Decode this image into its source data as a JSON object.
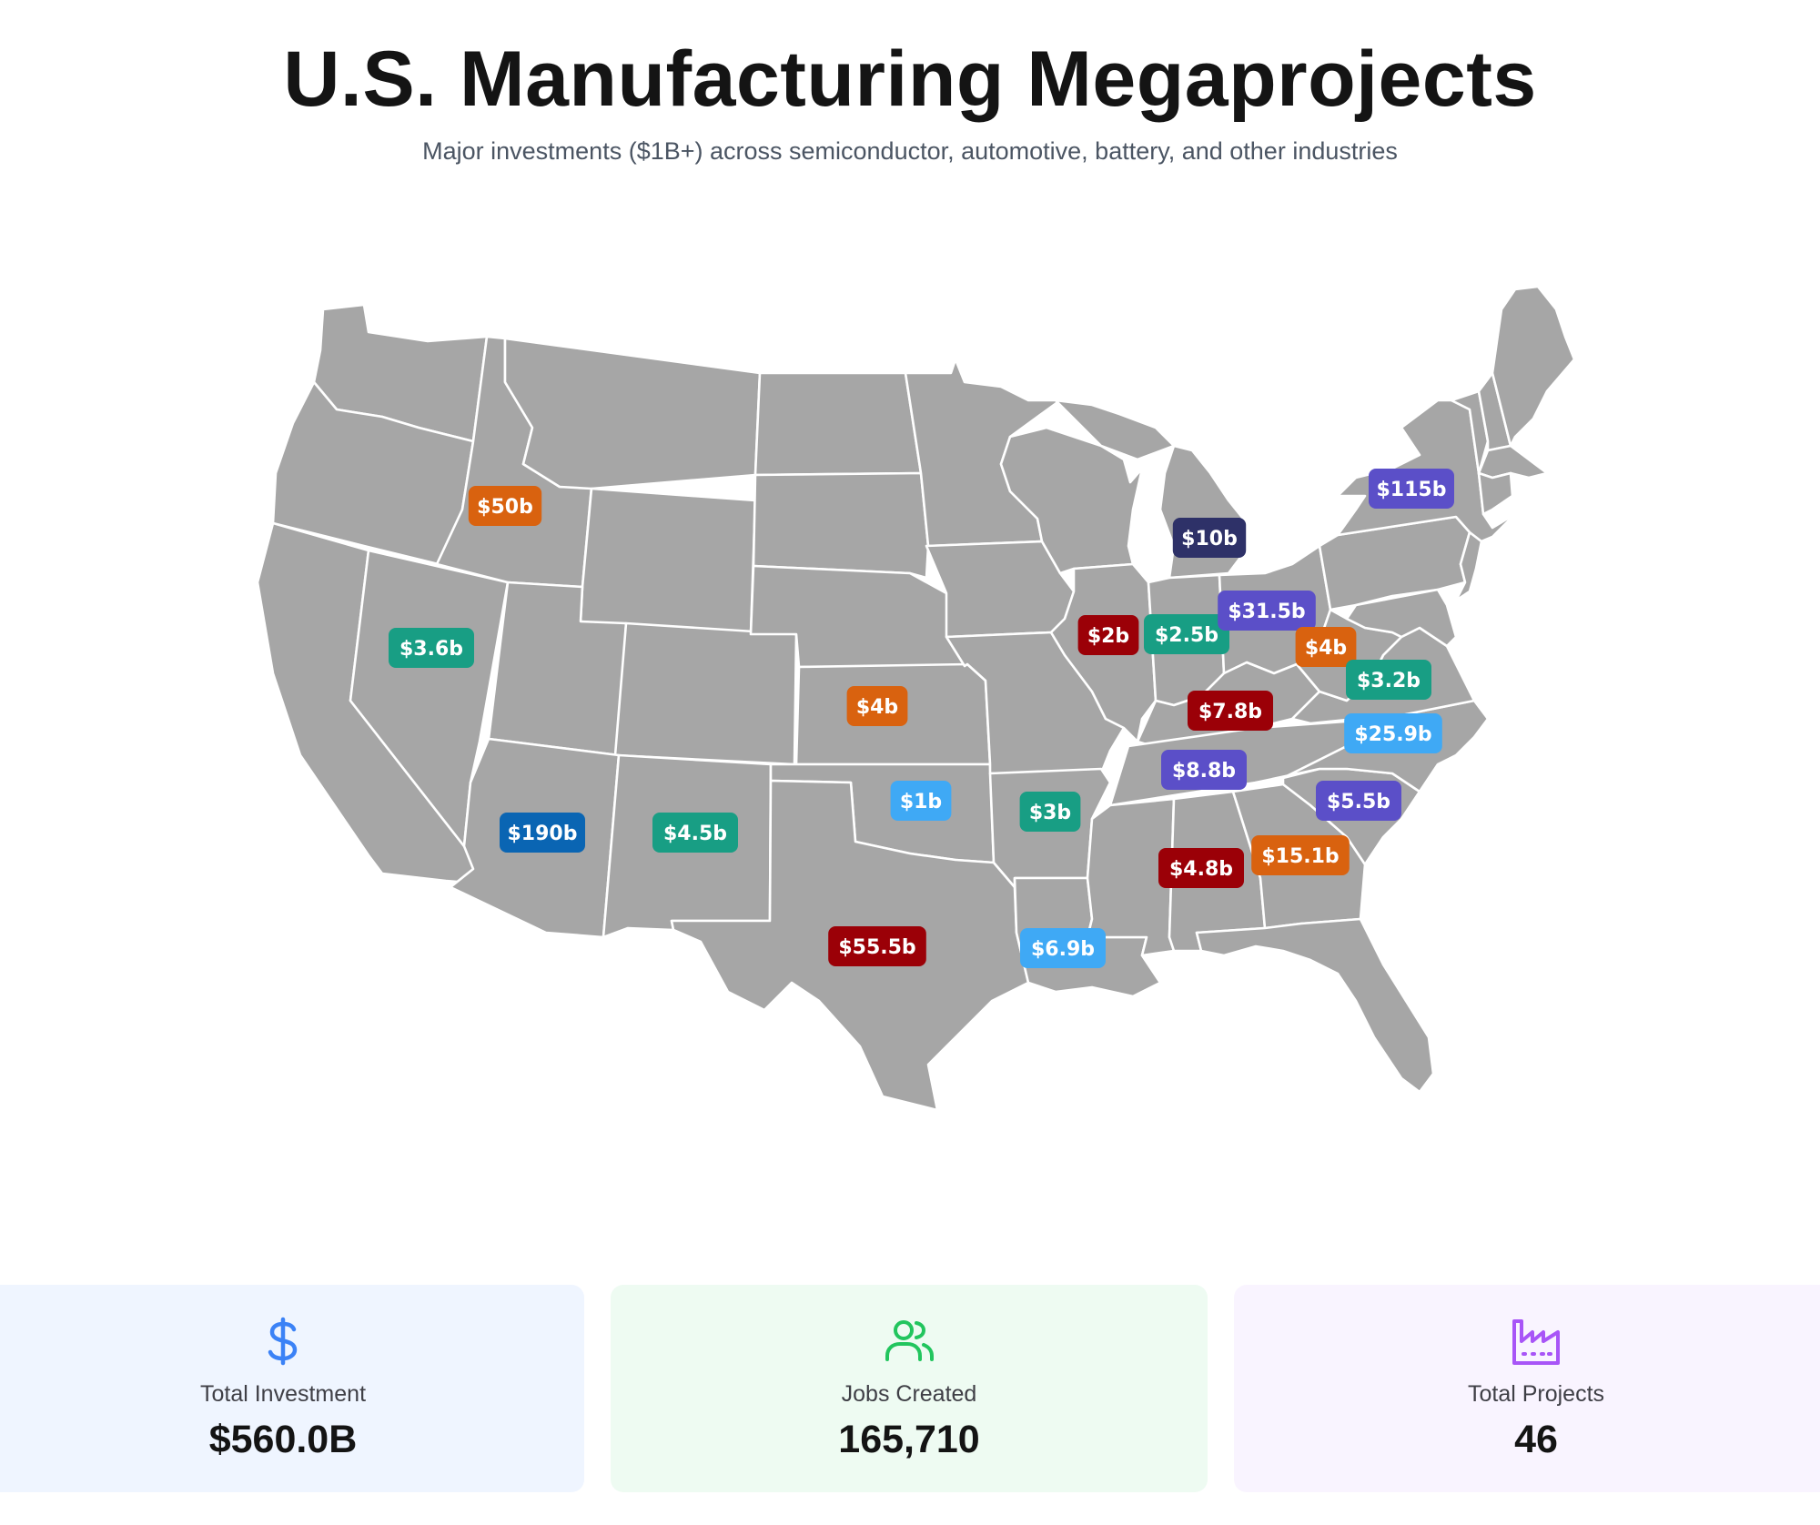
{
  "header": {
    "title": "U.S. Manufacturing Megaprojects",
    "subtitle": "Major investments ($1B+) across semiconductor, automotive, battery, and other industries"
  },
  "map": {
    "base_color": "#a6a6a6",
    "border_color": "#ffffff",
    "markers": [
      {
        "label": "$50b",
        "region": "Idaho",
        "color": "#d9620f"
      },
      {
        "label": "$3.6b",
        "region": "Nevada",
        "color": "#189e84"
      },
      {
        "label": "$190b",
        "region": "Arizona",
        "color": "#0a65b3"
      },
      {
        "label": "$4.5b",
        "region": "New Mexico",
        "color": "#189e84"
      },
      {
        "label": "$4b",
        "region": "Kansas",
        "color": "#d9620f"
      },
      {
        "label": "$1b",
        "region": "Oklahoma",
        "color": "#3fa9f5"
      },
      {
        "label": "$55.5b",
        "region": "Texas",
        "color": "#9b0007"
      },
      {
        "label": "$3b",
        "region": "Arkansas",
        "color": "#189e84"
      },
      {
        "label": "$6.9b",
        "region": "Louisiana",
        "color": "#3fa9f5"
      },
      {
        "label": "$2b",
        "region": "Illinois",
        "color": "#9b0007"
      },
      {
        "label": "$2.5b",
        "region": "Indiana",
        "color": "#189e84"
      },
      {
        "label": "$10b",
        "region": "Michigan",
        "color": "#2e3168"
      },
      {
        "label": "$31.5b",
        "region": "Ohio",
        "color": "#5b4fc8"
      },
      {
        "label": "$4b",
        "region": "West Virginia",
        "color": "#d9620f"
      },
      {
        "label": "$3.2b",
        "region": "Virginia",
        "color": "#189e84"
      },
      {
        "label": "$7.8b",
        "region": "Kentucky",
        "color": "#9b0007"
      },
      {
        "label": "$8.8b",
        "region": "Tennessee",
        "color": "#5b4fc8"
      },
      {
        "label": "$25.9b",
        "region": "North Carolina",
        "color": "#3fa9f5"
      },
      {
        "label": "$5.5b",
        "region": "South Carolina",
        "color": "#5b4fc8"
      },
      {
        "label": "$15.1b",
        "region": "Georgia",
        "color": "#d9620f"
      },
      {
        "label": "$4.8b",
        "region": "Alabama",
        "color": "#9b0007"
      },
      {
        "label": "$115b",
        "region": "New York",
        "color": "#5b4fc8"
      }
    ]
  },
  "stats": {
    "investment": {
      "label": "Total Investment",
      "value": "$560.0B",
      "icon": "dollar-icon",
      "color": "#3b82f6"
    },
    "jobs": {
      "label": "Jobs Created",
      "value": "165,710",
      "icon": "users-icon",
      "color": "#22c55e"
    },
    "projects": {
      "label": "Total Projects",
      "value": "46",
      "icon": "factory-icon",
      "color": "#a855f7"
    }
  }
}
